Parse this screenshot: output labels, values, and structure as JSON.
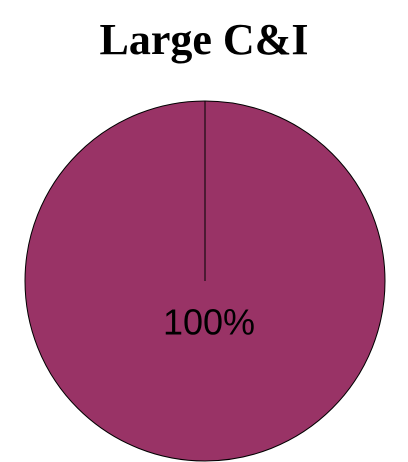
{
  "chart_data": {
    "type": "pie",
    "title": "Large C&I",
    "values": [
      100
    ],
    "value_labels": [
      "100%"
    ],
    "colors": [
      "#993366"
    ]
  }
}
